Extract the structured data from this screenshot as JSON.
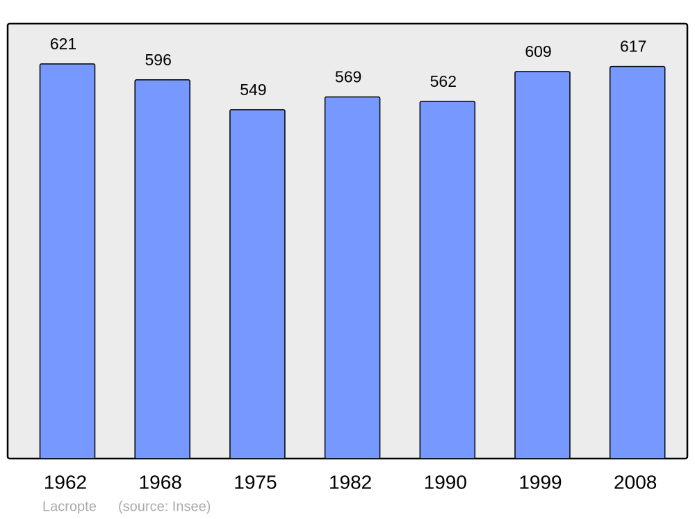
{
  "chart_data": {
    "type": "bar",
    "categories": [
      "1962",
      "1968",
      "1975",
      "1982",
      "1990",
      "1999",
      "2008"
    ],
    "values": [
      621,
      596,
      549,
      569,
      562,
      609,
      617
    ],
    "color": "#7799ff",
    "annotations": [
      "Lacropte",
      "(source: Insee)"
    ]
  }
}
